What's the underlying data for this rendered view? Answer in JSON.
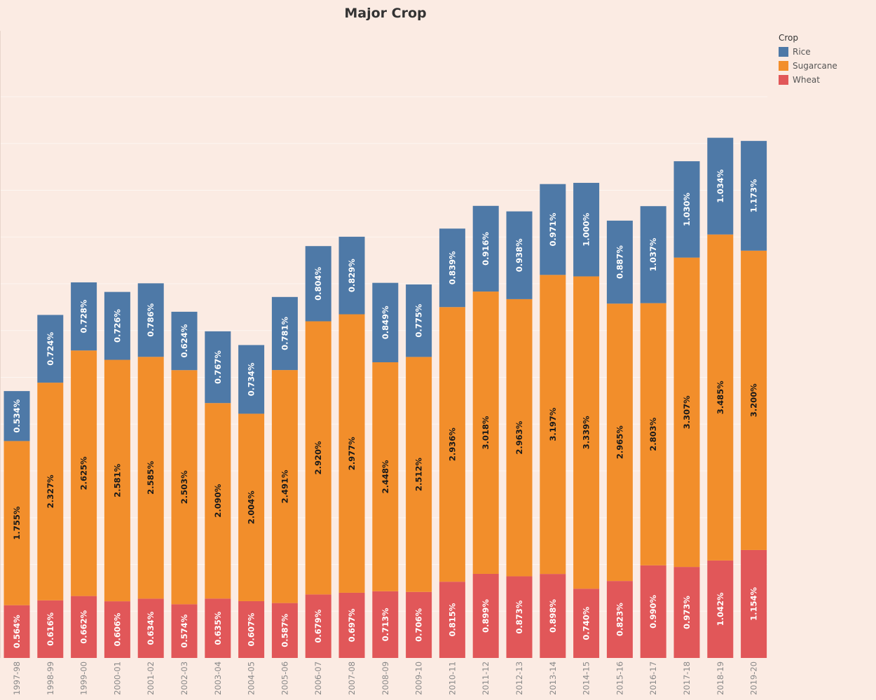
{
  "chart_data": {
    "type": "bar",
    "stacked": true,
    "title": "Major Crop",
    "legend_title": "Crop",
    "legend_position": "top-right",
    "grid": true,
    "categories": [
      "1997-98",
      "1998-99",
      "1999-00",
      "2000-01",
      "2001-02",
      "2002-03",
      "2003-04",
      "2004-05",
      "2005-06",
      "2006-07",
      "2007-08",
      "2008-09",
      "2009-10",
      "2010-11",
      "2011-12",
      "2012-13",
      "2013-14",
      "2014-15",
      "2015-16",
      "2016-17",
      "2017-18",
      "2018-19",
      "2019-20"
    ],
    "series": [
      {
        "name": "Wheat",
        "color": "#e15759",
        "values": [
          0.564,
          0.616,
          0.662,
          0.606,
          0.634,
          0.574,
          0.635,
          0.607,
          0.587,
          0.679,
          0.697,
          0.713,
          0.706,
          0.815,
          0.899,
          0.873,
          0.898,
          0.74,
          0.823,
          0.99,
          0.973,
          1.042,
          1.154
        ],
        "labels": [
          "0.564%",
          "0.616%",
          "0.662%",
          "0.606%",
          "0.634%",
          "0.574%",
          "0.635%",
          "0.607%",
          "0.587%",
          "0.679%",
          "0.697%",
          "0.713%",
          "0.706%",
          "0.815%",
          "0.899%",
          "0.873%",
          "0.898%",
          "0.740%",
          "0.823%",
          "0.990%",
          "0.973%",
          "1.042%",
          "1.154%"
        ]
      },
      {
        "name": "Sugarcane",
        "color": "#f28e2b",
        "values": [
          1.755,
          2.327,
          2.625,
          2.581,
          2.585,
          2.503,
          2.09,
          2.004,
          2.491,
          2.92,
          2.977,
          2.448,
          2.512,
          2.936,
          3.018,
          2.963,
          3.197,
          3.339,
          2.965,
          2.803,
          3.307,
          3.485,
          3.2
        ],
        "labels": [
          "1.755%",
          "2.327%",
          "2.625%",
          "2.581%",
          "2.585%",
          "2.503%",
          "2.090%",
          "2.004%",
          "2.491%",
          "2.920%",
          "2.977%",
          "2.448%",
          "2.512%",
          "2.936%",
          "3.018%",
          "2.963%",
          "3.197%",
          "3.339%",
          "2.965%",
          "2.803%",
          "3.307%",
          "3.485%",
          "3.200%"
        ]
      },
      {
        "name": "Rice",
        "color": "#4e79a7",
        "values": [
          0.534,
          0.724,
          0.728,
          0.726,
          0.786,
          0.624,
          0.767,
          0.734,
          0.781,
          0.804,
          0.829,
          0.849,
          0.775,
          0.839,
          0.916,
          0.938,
          0.971,
          1.0,
          0.887,
          1.037,
          1.03,
          1.034,
          1.173
        ],
        "labels": [
          "0.534%",
          "0.724%",
          "0.728%",
          "0.726%",
          "0.786%",
          "0.624%",
          "0.767%",
          "0.734%",
          "0.781%",
          "0.804%",
          "0.829%",
          "0.849%",
          "0.775%",
          "0.839%",
          "0.916%",
          "0.938%",
          "0.971%",
          "1.000%",
          "0.887%",
          "1.037%",
          "1.030%",
          "1.034%",
          "1.173%"
        ]
      }
    ],
    "legend_order": [
      "Rice",
      "Sugarcane",
      "Wheat"
    ],
    "ylim": [
      0,
      6.1
    ]
  }
}
